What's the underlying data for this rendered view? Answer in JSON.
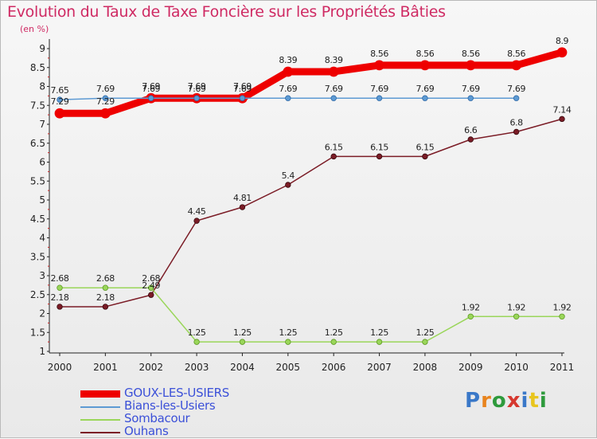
{
  "title": "Evolution du Taux de Taxe Foncière sur les Propriétés Bâties",
  "unit_label": "(en %)",
  "logo": {
    "text": "Proxiti",
    "colors": [
      "#3a78c8",
      "#e8841e",
      "#2e9a3c",
      "#d6382f",
      "#3a78c8",
      "#e8c51e",
      "#2e9a3c"
    ]
  },
  "chart_data": {
    "type": "line",
    "title": "Evolution du Taux de Taxe Foncière sur les Propriétés Bâties",
    "ylabel": "(en %)",
    "x": [
      "2000",
      "2001",
      "2002",
      "2003",
      "2004",
      "2005",
      "2006",
      "2007",
      "2008",
      "2009",
      "2010",
      "2011"
    ],
    "ylim": [
      1,
      9
    ],
    "yticks": [
      "1",
      "1.5",
      "2",
      "2.5",
      "3",
      "3.5",
      "4",
      "4.5",
      "5",
      "5.5",
      "6",
      "6.5",
      "7",
      "7.5",
      "8",
      "8.5",
      "9"
    ],
    "grid": false,
    "legend_position": "bottom-left",
    "series": [
      {
        "name": "GOUX-LES-USIERS",
        "color": "#ee0000",
        "values": [
          7.29,
          7.29,
          7.69,
          7.69,
          7.69,
          8.39,
          8.39,
          8.56,
          8.56,
          8.56,
          8.56,
          8.9
        ],
        "labels": [
          "7.29",
          "7.29",
          "7.69",
          "7.69",
          "7.69",
          "8.39",
          "8.39",
          "8.56",
          "8.56",
          "8.56",
          "8.56",
          "8.9"
        ]
      },
      {
        "name": "Bians-les-Usiers",
        "color": "#5d9ad3",
        "values": [
          7.65,
          7.69,
          7.69,
          7.69,
          7.69,
          7.69,
          7.69,
          7.69,
          7.69,
          7.69,
          7.69,
          null
        ],
        "labels": [
          "7.65",
          "7.69",
          "7.69",
          "7.69",
          "7.69",
          "7.69",
          "7.69",
          "7.69",
          "7.69",
          "7.69",
          "7.69",
          null
        ]
      },
      {
        "name": "Sombacour",
        "color": "#9ad65a",
        "values": [
          2.68,
          2.68,
          2.68,
          1.25,
          1.25,
          1.25,
          1.25,
          1.25,
          1.25,
          1.92,
          1.92,
          1.92
        ],
        "labels": [
          "2.68",
          "2.68",
          "2.68",
          "1.25",
          "1.25",
          "1.25",
          "1.25",
          "1.25",
          "1.25",
          "1.92",
          "1.92",
          "1.92"
        ]
      },
      {
        "name": "Ouhans",
        "color": "#7b1c26",
        "values": [
          2.18,
          2.18,
          2.49,
          4.45,
          4.81,
          5.4,
          6.15,
          6.15,
          6.15,
          6.6,
          6.8,
          7.14
        ],
        "labels": [
          "2.18",
          "2.18",
          "2.49",
          "4.45",
          "4.81",
          "5.4",
          "6.15",
          "6.15",
          "6.15",
          "6.6",
          "6.8",
          "7.14"
        ]
      }
    ]
  }
}
